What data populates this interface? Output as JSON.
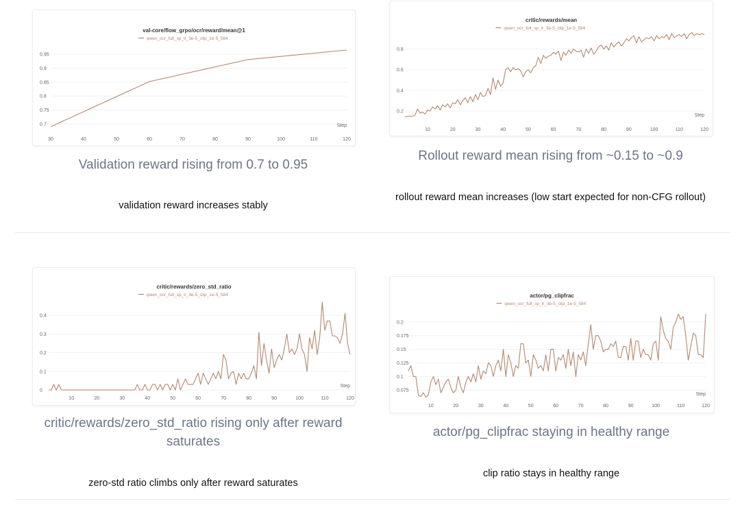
{
  "colors": {
    "line": "#b5866c",
    "grid": "#eef0f2",
    "tick": "#666666",
    "caption": "#6b7488"
  },
  "panels": [
    {
      "caption": "Validation reward rising from 0.7 to 0.95",
      "note": "validation reward increases stably"
    },
    {
      "caption": "Rollout reward mean rising from ~0.15 to ~0.9",
      "note": "rollout reward mean increases (low start expected for non-CFG rollout)"
    },
    {
      "caption": "critic/rewards/zero_std_ratio rising only after reward saturates",
      "note": "zero-std ratio climbs only after reward saturates"
    },
    {
      "caption": "actor/pg_clipfrac staying in healthy range",
      "note": "clip ratio stays in healthy range"
    }
  ],
  "chart_data": [
    {
      "type": "line",
      "title": "val-core/flow_grpo/ocr/reward/mean@1",
      "xlabel": "Step",
      "ylabel": "",
      "xlim": [
        30,
        120
      ],
      "ylim": [
        0.68,
        0.97
      ],
      "xticks": [
        30,
        40,
        50,
        60,
        70,
        80,
        90,
        100,
        110,
        120
      ],
      "yticks": [
        0.7,
        0.75,
        0.8,
        0.85,
        0.9,
        0.95
      ],
      "series": [
        {
          "name": "qwen_ocr_full_sp_lr_3e-5_clip_1e-5_584",
          "x": [
            30,
            60,
            90,
            120
          ],
          "y": [
            0.69,
            0.852,
            0.931,
            0.965
          ]
        }
      ]
    },
    {
      "type": "line",
      "title": "critic/rewards/mean",
      "xlabel": "Step",
      "ylabel": "",
      "xlim": [
        1,
        120
      ],
      "ylim": [
        0.12,
        0.97
      ],
      "xticks": [
        10,
        20,
        30,
        40,
        50,
        60,
        70,
        80,
        90,
        100,
        110,
        120
      ],
      "yticks": [
        0.2,
        0.4,
        0.6,
        0.8
      ],
      "series": [
        {
          "name": "qwen_ocr_full_sp_lr_3e-5_clip_1e-5_584",
          "x": [
            1,
            2,
            3,
            4,
            5,
            6,
            7,
            8,
            9,
            10,
            11,
            12,
            13,
            14,
            15,
            16,
            17,
            18,
            19,
            20,
            21,
            22,
            23,
            24,
            25,
            26,
            27,
            28,
            29,
            30,
            31,
            32,
            33,
            34,
            35,
            36,
            37,
            38,
            39,
            40,
            41,
            42,
            43,
            44,
            45,
            46,
            47,
            48,
            49,
            50,
            51,
            52,
            53,
            54,
            55,
            56,
            57,
            58,
            59,
            60,
            61,
            62,
            63,
            64,
            65,
            66,
            67,
            68,
            69,
            70,
            71,
            72,
            73,
            74,
            75,
            76,
            77,
            78,
            79,
            80,
            81,
            82,
            83,
            84,
            85,
            86,
            87,
            88,
            89,
            90,
            91,
            92,
            93,
            94,
            95,
            96,
            97,
            98,
            99,
            100,
            101,
            102,
            103,
            104,
            105,
            106,
            107,
            108,
            109,
            110,
            111,
            112,
            113,
            114,
            115,
            116,
            117,
            118,
            119,
            120
          ],
          "y": [
            0.14,
            0.15,
            0.15,
            0.15,
            0.16,
            0.22,
            0.18,
            0.19,
            0.17,
            0.21,
            0.2,
            0.24,
            0.22,
            0.25,
            0.21,
            0.26,
            0.24,
            0.27,
            0.23,
            0.28,
            0.27,
            0.31,
            0.26,
            0.3,
            0.33,
            0.28,
            0.34,
            0.29,
            0.36,
            0.31,
            0.38,
            0.34,
            0.35,
            0.42,
            0.36,
            0.52,
            0.41,
            0.5,
            0.44,
            0.47,
            0.6,
            0.62,
            0.58,
            0.62,
            0.6,
            0.61,
            0.59,
            0.53,
            0.58,
            0.6,
            0.57,
            0.62,
            0.64,
            0.72,
            0.66,
            0.74,
            0.71,
            0.73,
            0.74,
            0.77,
            0.75,
            0.78,
            0.69,
            0.77,
            0.74,
            0.79,
            0.76,
            0.8,
            0.78,
            0.77,
            0.79,
            0.72,
            0.8,
            0.76,
            0.81,
            0.75,
            0.78,
            0.82,
            0.84,
            0.8,
            0.83,
            0.79,
            0.86,
            0.82,
            0.85,
            0.87,
            0.83,
            0.86,
            0.9,
            0.88,
            0.91,
            0.93,
            0.86,
            0.92,
            0.87,
            0.89,
            0.91,
            0.9,
            0.92,
            0.88,
            0.93,
            0.9,
            0.92,
            0.91,
            0.94,
            0.89,
            0.95,
            0.91,
            0.93,
            0.94,
            0.92,
            0.95,
            0.9,
            0.94,
            0.96,
            0.93,
            0.95,
            0.94,
            0.95,
            0.94
          ]
        }
      ]
    },
    {
      "type": "line",
      "title": "critic/rewards/zero_std_ratio",
      "xlabel": "Step",
      "ylabel": "",
      "xlim": [
        1,
        120
      ],
      "ylim": [
        0,
        0.47
      ],
      "xticks": [
        10,
        20,
        30,
        40,
        50,
        60,
        70,
        80,
        90,
        100,
        110,
        120
      ],
      "yticks": [
        0,
        0.1,
        0.2,
        0.3,
        0.4
      ],
      "series": [
        {
          "name": "qwen_ocr_full_sp_lr_3e-5_clip_1e-5_584",
          "x": [
            1,
            2,
            3,
            4,
            5,
            6,
            7,
            8,
            9,
            10,
            11,
            12,
            13,
            14,
            15,
            16,
            17,
            18,
            19,
            20,
            21,
            22,
            23,
            24,
            25,
            26,
            27,
            28,
            29,
            30,
            31,
            32,
            33,
            34,
            35,
            36,
            37,
            38,
            39,
            40,
            41,
            42,
            43,
            44,
            45,
            46,
            47,
            48,
            49,
            50,
            51,
            52,
            53,
            54,
            55,
            56,
            57,
            58,
            59,
            60,
            61,
            62,
            63,
            64,
            65,
            66,
            67,
            68,
            69,
            70,
            71,
            72,
            73,
            74,
            75,
            76,
            77,
            78,
            79,
            80,
            81,
            82,
            83,
            84,
            85,
            86,
            87,
            88,
            89,
            90,
            91,
            92,
            93,
            94,
            95,
            96,
            97,
            98,
            99,
            100,
            101,
            102,
            103,
            104,
            105,
            106,
            107,
            108,
            109,
            110,
            111,
            112,
            113,
            114,
            115,
            116,
            117,
            118,
            119,
            120
          ],
          "y": [
            0.0,
            0.0,
            0.03,
            0.0,
            0.03,
            0.0,
            0.0,
            0.0,
            0.0,
            0.0,
            0.0,
            0.0,
            0.0,
            0.0,
            0.0,
            0.0,
            0.0,
            0.0,
            0.0,
            0.0,
            0.0,
            0.0,
            0.0,
            0.0,
            0.0,
            0.0,
            0.0,
            0.0,
            0.0,
            0.0,
            0.0,
            0.0,
            0.0,
            0.0,
            0.0,
            0.03,
            0.0,
            0.0,
            0.03,
            0.0,
            0.0,
            0.03,
            0.03,
            0.0,
            0.03,
            0.0,
            0.03,
            0.03,
            0.0,
            0.03,
            0.0,
            0.06,
            0.0,
            0.03,
            0.06,
            0.03,
            0.03,
            0.03,
            0.06,
            0.09,
            0.03,
            0.09,
            0.06,
            0.03,
            0.06,
            0.09,
            0.06,
            0.1,
            0.06,
            0.19,
            0.16,
            0.06,
            0.09,
            0.1,
            0.03,
            0.09,
            0.06,
            0.09,
            0.06,
            0.06,
            0.09,
            0.13,
            0.06,
            0.31,
            0.13,
            0.25,
            0.16,
            0.09,
            0.22,
            0.12,
            0.16,
            0.19,
            0.16,
            0.22,
            0.3,
            0.2,
            0.22,
            0.19,
            0.22,
            0.3,
            0.22,
            0.19,
            0.1,
            0.28,
            0.22,
            0.32,
            0.19,
            0.28,
            0.47,
            0.32,
            0.37,
            0.37,
            0.29,
            0.29,
            0.28,
            0.25,
            0.3,
            0.41,
            0.25,
            0.19
          ]
        }
      ]
    },
    {
      "type": "line",
      "title": "actor/pg_clipfrac",
      "xlabel": "Step",
      "ylabel": "",
      "xlim": [
        1,
        120
      ],
      "ylim": [
        0.06,
        0.22
      ],
      "xticks": [
        10,
        20,
        30,
        40,
        50,
        60,
        70,
        80,
        90,
        100,
        110,
        120
      ],
      "yticks": [
        0.075,
        0.1,
        0.125,
        0.15,
        0.175,
        0.2
      ],
      "series": [
        {
          "name": "qwen_ocr_full_sp_lr_3e-5_clip_1e-5_584",
          "x": [
            1,
            2,
            3,
            4,
            5,
            6,
            7,
            8,
            9,
            10,
            11,
            12,
            13,
            14,
            15,
            16,
            17,
            18,
            19,
            20,
            21,
            22,
            23,
            24,
            25,
            26,
            27,
            28,
            29,
            30,
            31,
            32,
            33,
            34,
            35,
            36,
            37,
            38,
            39,
            40,
            41,
            42,
            43,
            44,
            45,
            46,
            47,
            48,
            49,
            50,
            51,
            52,
            53,
            54,
            55,
            56,
            57,
            58,
            59,
            60,
            61,
            62,
            63,
            64,
            65,
            66,
            67,
            68,
            69,
            70,
            71,
            72,
            73,
            74,
            75,
            76,
            77,
            78,
            79,
            80,
            81,
            82,
            83,
            84,
            85,
            86,
            87,
            88,
            89,
            90,
            91,
            92,
            93,
            94,
            95,
            96,
            97,
            98,
            99,
            100,
            101,
            102,
            103,
            104,
            105,
            106,
            107,
            108,
            109,
            110,
            111,
            112,
            113,
            114,
            115,
            116,
            117,
            118,
            119,
            120
          ],
          "y": [
            0.11,
            0.12,
            0.1,
            0.1,
            0.065,
            0.063,
            0.07,
            0.062,
            0.066,
            0.09,
            0.1,
            0.085,
            0.095,
            0.07,
            0.08,
            0.09,
            0.095,
            0.08,
            0.07,
            0.075,
            0.1,
            0.08,
            0.07,
            0.09,
            0.1,
            0.09,
            0.105,
            0.09,
            0.12,
            0.095,
            0.11,
            0.105,
            0.125,
            0.12,
            0.1,
            0.12,
            0.13,
            0.11,
            0.15,
            0.1,
            0.14,
            0.125,
            0.1,
            0.12,
            0.115,
            0.16,
            0.16,
            0.125,
            0.13,
            0.1,
            0.14,
            0.13,
            0.115,
            0.12,
            0.11,
            0.14,
            0.11,
            0.15,
            0.15,
            0.11,
            0.135,
            0.13,
            0.14,
            0.115,
            0.15,
            0.12,
            0.145,
            0.1,
            0.14,
            0.13,
            0.145,
            0.12,
            0.16,
            0.195,
            0.15,
            0.175,
            0.175,
            0.165,
            0.145,
            0.15,
            0.15,
            0.16,
            0.155,
            0.165,
            0.135,
            0.135,
            0.155,
            0.155,
            0.13,
            0.17,
            0.13,
            0.165,
            0.165,
            0.135,
            0.15,
            0.14,
            0.14,
            0.13,
            0.16,
            0.165,
            0.13,
            0.21,
            0.185,
            0.17,
            0.165,
            0.15,
            0.19,
            0.2,
            0.215,
            0.205,
            0.21,
            0.175,
            0.13,
            0.155,
            0.18,
            0.175,
            0.14,
            0.14,
            0.135,
            0.215
          ]
        }
      ]
    }
  ]
}
